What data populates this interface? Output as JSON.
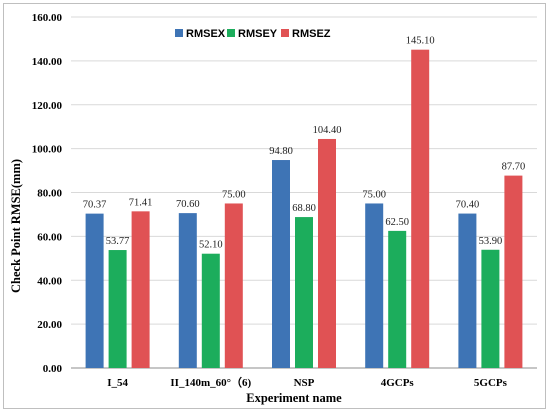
{
  "chart_data": {
    "type": "bar",
    "title": "",
    "xlabel": "Experiment name",
    "ylabel": "Check Point RMSE(mm)",
    "ylim": [
      0,
      160
    ],
    "yticks": [
      "0.00",
      "20.00",
      "40.00",
      "60.00",
      "80.00",
      "100.00",
      "120.00",
      "140.00",
      "160.00"
    ],
    "grid": true,
    "legend": "top-center",
    "categories": [
      "I_54",
      "II_140m_60°（6)",
      "NSP",
      "4GCPs",
      "5GCPs"
    ],
    "series": [
      {
        "name": "RMSEX",
        "color": "#3e74b5",
        "values": [
          70.37,
          70.6,
          94.8,
          75.0,
          70.4
        ],
        "labels": [
          "70.37",
          "70.60",
          "94.80",
          "75.00",
          "70.40"
        ]
      },
      {
        "name": "RMSEY",
        "color": "#1cad5c",
        "values": [
          53.77,
          52.1,
          68.8,
          62.5,
          53.9
        ],
        "labels": [
          "53.77",
          "52.10",
          "68.80",
          "62.50",
          "53.90"
        ]
      },
      {
        "name": "RMSEZ",
        "color": "#e05254",
        "values": [
          71.41,
          75.0,
          104.4,
          145.1,
          87.7
        ],
        "labels": [
          "71.41",
          "75.00",
          "104.40",
          "145.10",
          "87.70"
        ]
      }
    ]
  }
}
